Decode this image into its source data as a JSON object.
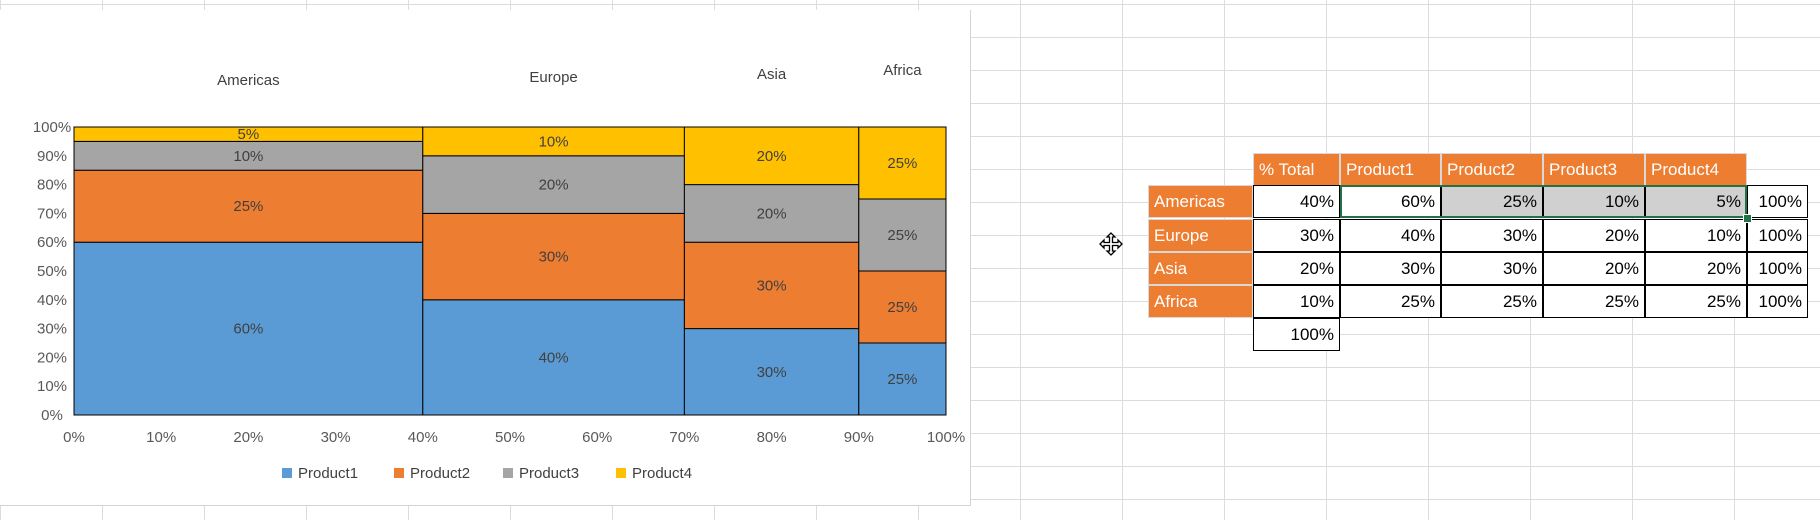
{
  "chart_data": {
    "type": "mekko",
    "regions": [
      {
        "name": "Americas",
        "width": 40,
        "values": [
          60,
          25,
          10,
          5
        ]
      },
      {
        "name": "Europe",
        "width": 30,
        "values": [
          40,
          30,
          20,
          10
        ]
      },
      {
        "name": "Asia",
        "width": 20,
        "values": [
          30,
          30,
          20,
          20
        ]
      },
      {
        "name": "Africa",
        "width": 10,
        "values": [
          25,
          25,
          25,
          25
        ]
      }
    ],
    "series": [
      {
        "name": "Product1",
        "color": "#5b9bd5"
      },
      {
        "name": "Product2",
        "color": "#ed7d31"
      },
      {
        "name": "Product3",
        "color": "#a5a5a5"
      },
      {
        "name": "Product4",
        "color": "#ffc000"
      }
    ],
    "segment_labels": [
      [
        "60%",
        "25%",
        "10%",
        "5%"
      ],
      [
        "40%",
        "30%",
        "20%",
        "10%"
      ],
      [
        "30%",
        "30%",
        "20%",
        "20%"
      ],
      [
        "25%",
        "25%",
        "25%",
        "25%"
      ]
    ],
    "y_ticks": [
      "0%",
      "10%",
      "20%",
      "30%",
      "40%",
      "50%",
      "60%",
      "70%",
      "80%",
      "90%",
      "100%"
    ],
    "x_ticks": [
      "0%",
      "10%",
      "20%",
      "30%",
      "40%",
      "50%",
      "60%",
      "70%",
      "80%",
      "90%",
      "100%"
    ],
    "xlim": [
      0,
      100
    ],
    "ylim": [
      0,
      100
    ],
    "legend_position": "bottom",
    "grid": false
  },
  "table": {
    "headers": [
      "% Total",
      "Product1",
      "Product2",
      "Product3",
      "Product4"
    ],
    "rows": [
      {
        "label": "Americas",
        "total": "40%",
        "cells": [
          "60%",
          "25%",
          "10%",
          "5%"
        ],
        "sum": "100%"
      },
      {
        "label": "Europe",
        "total": "30%",
        "cells": [
          "40%",
          "30%",
          "20%",
          "10%"
        ],
        "sum": "100%"
      },
      {
        "label": "Asia",
        "total": "20%",
        "cells": [
          "30%",
          "30%",
          "20%",
          "20%"
        ],
        "sum": "100%"
      },
      {
        "label": "Africa",
        "total": "10%",
        "cells": [
          "25%",
          "25%",
          "25%",
          "25%"
        ],
        "sum": "100%"
      }
    ],
    "grand_total": "100%",
    "header_color": "#ed7d31",
    "selection_color": "#217346"
  },
  "icons": {
    "cursor": "move-cursor-icon"
  }
}
